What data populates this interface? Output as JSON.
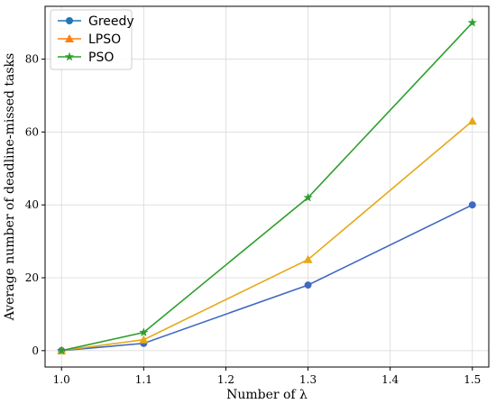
{
  "chart_data": {
    "type": "line",
    "title": "",
    "xlabel": "Number of λ",
    "ylabel": "Average number of deadline-missed tasks",
    "x": [
      1.0,
      1.1,
      1.3,
      1.5
    ],
    "xticks": [
      "1.0",
      "1.1",
      "1.2",
      "1.3",
      "1.4",
      "1.5"
    ],
    "yticks": [
      "0",
      "20",
      "40",
      "60",
      "80"
    ],
    "xlim": [
      0.98,
      1.52
    ],
    "ylim": [
      -4.5,
      94.5
    ],
    "grid": true,
    "legend_position": "top-left",
    "series": [
      {
        "name": "Greedy",
        "values": [
          0,
          2,
          18,
          40
        ],
        "color": "#4169c0",
        "legend_color": "#1f77b4",
        "marker": "circle"
      },
      {
        "name": "LPSO",
        "values": [
          0,
          3,
          25,
          63
        ],
        "color": "#e6a817",
        "legend_color": "#ff7f0e",
        "marker": "triangle"
      },
      {
        "name": "PSO",
        "values": [
          0,
          5,
          42,
          90
        ],
        "color": "#2ca02c",
        "legend_color": "#2ca02c",
        "marker": "star"
      }
    ]
  }
}
